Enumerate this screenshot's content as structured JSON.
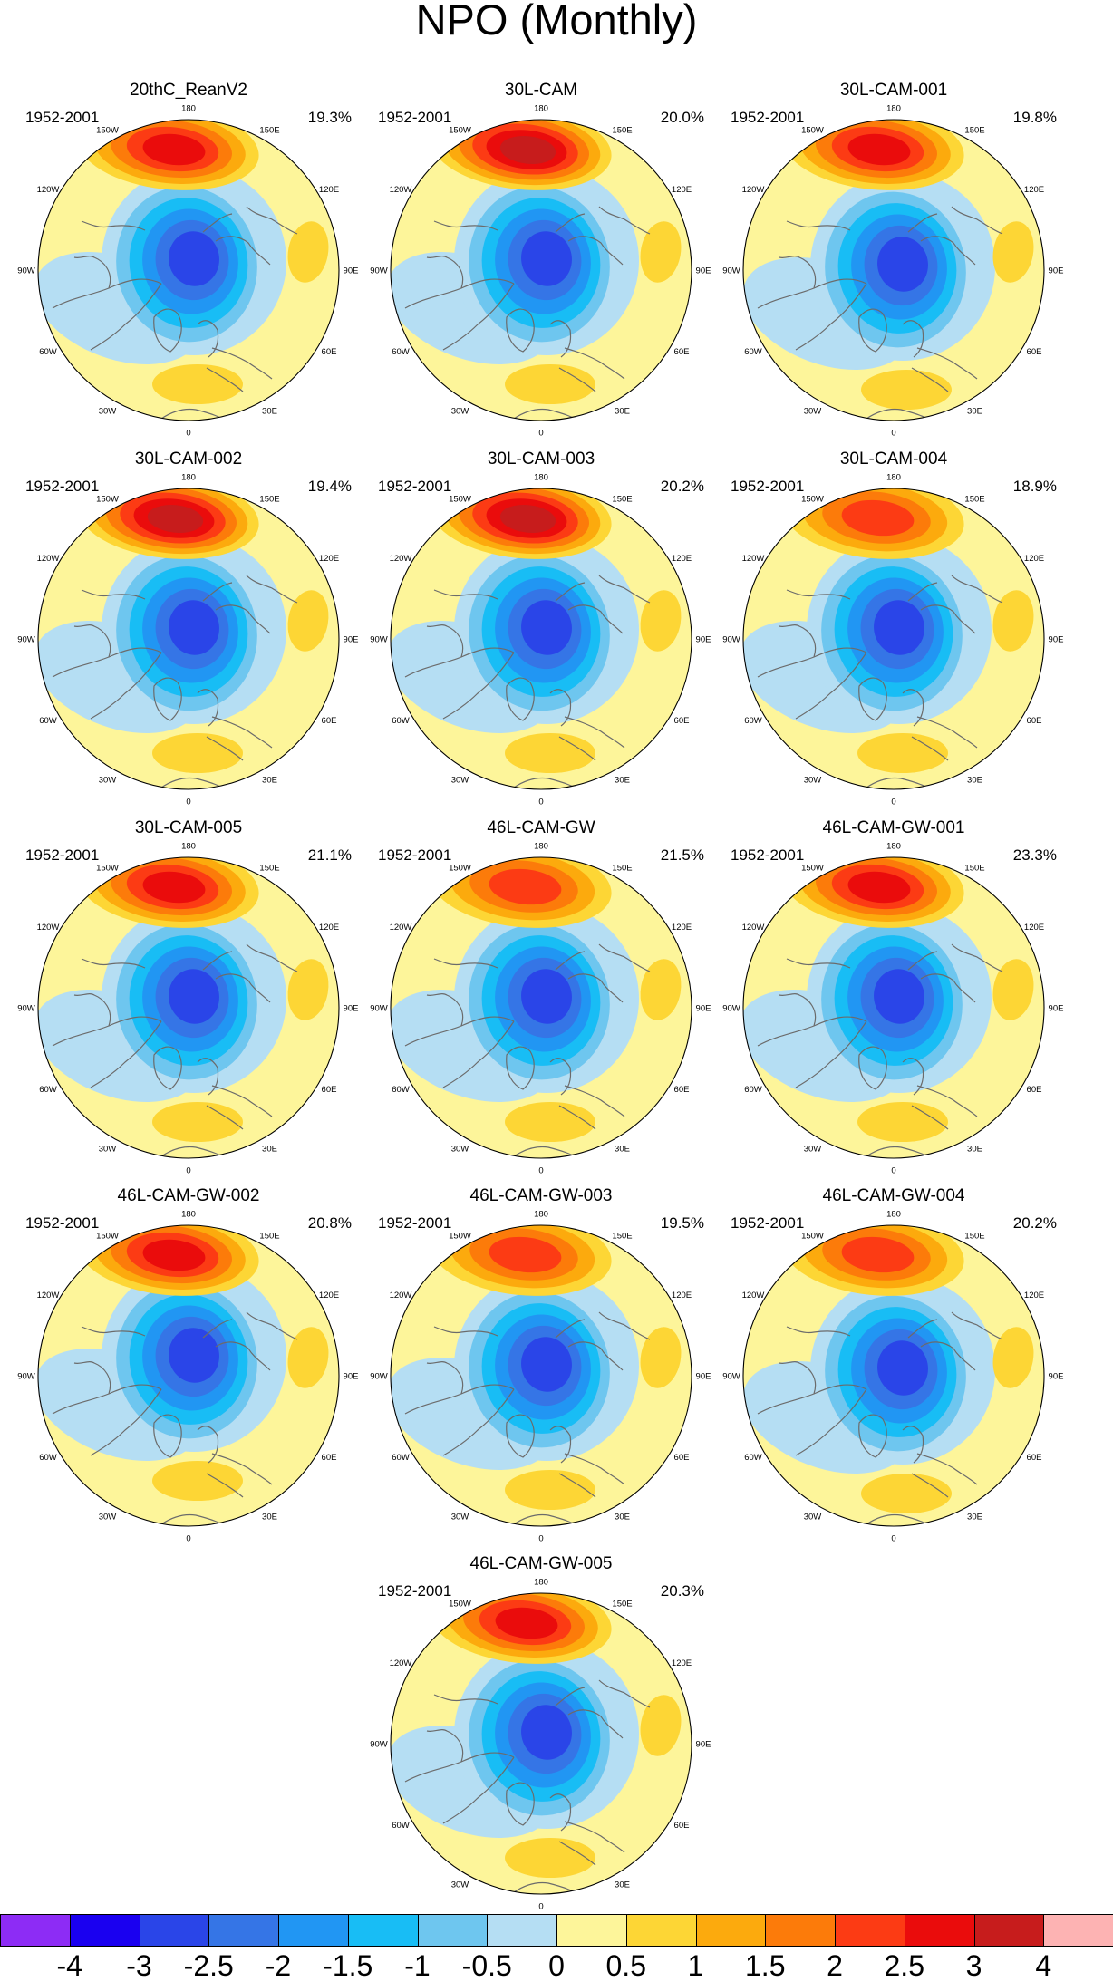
{
  "title": "NPO (Monthly)",
  "years": "1952-2001",
  "lon_labels": [
    "180",
    "150E",
    "120E",
    "90E",
    "60E",
    "30E",
    "0",
    "30W",
    "60W",
    "90W",
    "120W",
    "150W"
  ],
  "panels": [
    {
      "name": "20thC_ReanV2",
      "pct": "19.3%",
      "pos_peak": 2.5,
      "neg_peak": -3.0,
      "shift": [
        0,
        0
      ]
    },
    {
      "name": "30L-CAM",
      "pct": "20.0%",
      "pos_peak": 3.0,
      "neg_peak": -3.0,
      "shift": [
        0,
        0
      ]
    },
    {
      "name": "30L-CAM-001",
      "pct": "19.8%",
      "pos_peak": 2.5,
      "neg_peak": -3.5,
      "shift": [
        4,
        6
      ]
    },
    {
      "name": "30L-CAM-002",
      "pct": "19.4%",
      "pos_peak": 3.0,
      "neg_peak": -3.5,
      "shift": [
        0,
        0
      ]
    },
    {
      "name": "30L-CAM-003",
      "pct": "20.2%",
      "pos_peak": 3.0,
      "neg_peak": -3.5,
      "shift": [
        0,
        0
      ]
    },
    {
      "name": "30L-CAM-004",
      "pct": "18.9%",
      "pos_peak": 2.0,
      "neg_peak": -3.5,
      "shift": [
        0,
        0
      ]
    },
    {
      "name": "30L-CAM-005",
      "pct": "21.1%",
      "pos_peak": 2.5,
      "neg_peak": -3.5,
      "shift": [
        0,
        0
      ]
    },
    {
      "name": "46L-CAM-GW",
      "pct": "21.5%",
      "pos_peak": 2.0,
      "neg_peak": -3.5,
      "shift": [
        0,
        0
      ]
    },
    {
      "name": "46L-CAM-GW-001",
      "pct": "23.3%",
      "pos_peak": 2.5,
      "neg_peak": -3.0,
      "shift": [
        0,
        0
      ]
    },
    {
      "name": "46L-CAM-GW-002",
      "pct": "20.8%",
      "pos_peak": 2.5,
      "neg_peak": -3.5,
      "shift": [
        0,
        -10
      ]
    },
    {
      "name": "46L-CAM-GW-003",
      "pct": "19.5%",
      "pos_peak": 2.0,
      "neg_peak": -3.5,
      "shift": [
        0,
        0
      ]
    },
    {
      "name": "46L-CAM-GW-004",
      "pct": "20.2%",
      "pos_peak": 2.0,
      "neg_peak": -3.5,
      "shift": [
        4,
        4
      ]
    },
    {
      "name": "46L-CAM-GW-005",
      "pct": "20.3%",
      "pos_peak": 2.5,
      "neg_peak": -3.5,
      "shift": [
        0,
        0
      ]
    }
  ],
  "colorbar": {
    "colors": [
      "#8d2cf5",
      "#1a00f0",
      "#2a45e8",
      "#3575e6",
      "#2196f3",
      "#18bdf5",
      "#6ec6ef",
      "#b5def3",
      "#fdf59a",
      "#fdd635",
      "#fcaa0d",
      "#fc7b0a",
      "#fc3b14",
      "#ea0c0c",
      "#c71c1c",
      "#fdb3b3"
    ],
    "labels": [
      "-4",
      "-3",
      "-2.5",
      "-2",
      "-1.5",
      "-1",
      "-0.5",
      "0",
      "0.5",
      "1",
      "1.5",
      "2",
      "2.5",
      "3",
      "4"
    ]
  }
}
